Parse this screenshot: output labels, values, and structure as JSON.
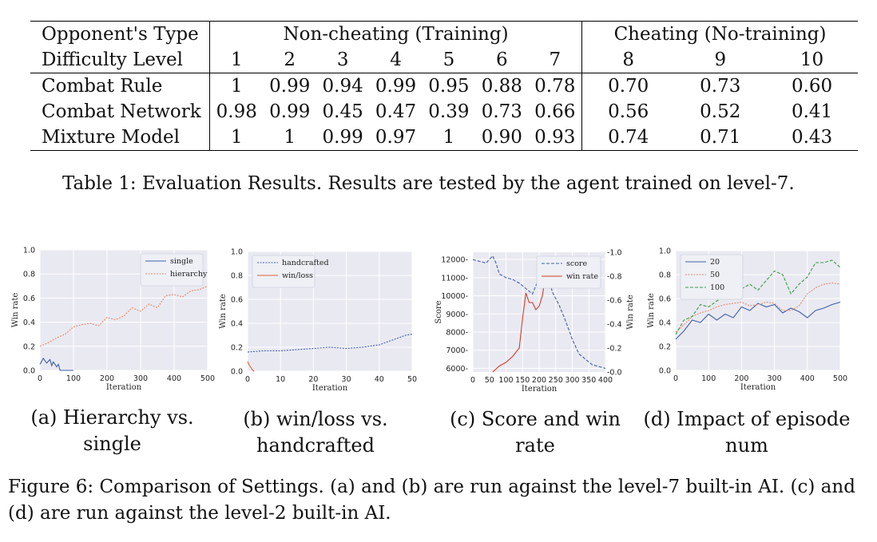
{
  "table": {
    "header1": {
      "label": "Opponent's Type",
      "group1": "Non-cheating (Training)",
      "group2": "Cheating (No-training)"
    },
    "header2": {
      "label": "Difficulty Level",
      "levels": [
        "1",
        "2",
        "3",
        "4",
        "5",
        "6",
        "7",
        "8",
        "9",
        "10"
      ]
    },
    "rows": [
      {
        "label": "Combat Rule",
        "values": [
          "1",
          "0.99",
          "0.94",
          "0.99",
          "0.95",
          "0.88",
          "0.78",
          "0.70",
          "0.73",
          "0.60"
        ]
      },
      {
        "label": "Combat Network",
        "values": [
          "0.98",
          "0.99",
          "0.45",
          "0.47",
          "0.39",
          "0.73",
          "0.66",
          "0.56",
          "0.52",
          "0.41"
        ]
      },
      {
        "label": "Mixture Model",
        "values": [
          "1",
          "1",
          "0.99",
          "0.97",
          "1",
          "0.90",
          "0.93",
          "0.74",
          "0.71",
          "0.43"
        ]
      }
    ],
    "caption": "Table 1: Evaluation Results. Results are tested by the agent trained on level-7."
  },
  "figure": {
    "caption": "Figure 6: Comparison of Settings. (a) and (b) are run against the level-7 built-in AI. (c) and (d) are run against the level-2 built-in AI.",
    "subcaptions": {
      "a": [
        "(a) Hierarchy vs.",
        "single"
      ],
      "b": [
        "(b) win/loss vs.",
        "handcrafted"
      ],
      "c": [
        "(c) Score and win",
        "rate"
      ],
      "d": [
        "(d) Impact of episode",
        "num"
      ]
    }
  },
  "chart_data": [
    {
      "id": "a",
      "type": "line",
      "xlabel": "Iteration",
      "ylabel": "Win rate",
      "xlim": [
        0,
        500
      ],
      "ylim": [
        0,
        1.0
      ],
      "xticks": [
        "0",
        "100",
        "200",
        "300",
        "400",
        "500"
      ],
      "yticks": [
        "0.0",
        "0.2",
        "0.4",
        "0.6",
        "0.8",
        "1.0"
      ],
      "legend_position": "top-right",
      "colors": {
        "single": "#3f5fa8",
        "hierarchy": "#e58a6d"
      },
      "series": [
        {
          "name": "single",
          "x": [
            0,
            10,
            20,
            30,
            35,
            40,
            50,
            55,
            60,
            70,
            80,
            90,
            100
          ],
          "y": [
            0.05,
            0.1,
            0.06,
            0.09,
            0.04,
            0.07,
            0.03,
            0.05,
            0.0,
            0.0,
            0.0,
            0.0,
            0.0
          ]
        },
        {
          "name": "hierarchy",
          "x": [
            0,
            25,
            50,
            75,
            100,
            125,
            150,
            175,
            200,
            225,
            250,
            275,
            300,
            325,
            350,
            375,
            400,
            425,
            450,
            475,
            500
          ],
          "y": [
            0.2,
            0.23,
            0.27,
            0.3,
            0.36,
            0.38,
            0.39,
            0.37,
            0.44,
            0.42,
            0.45,
            0.52,
            0.49,
            0.55,
            0.52,
            0.62,
            0.63,
            0.61,
            0.66,
            0.67,
            0.7
          ]
        }
      ]
    },
    {
      "id": "b",
      "type": "line",
      "xlabel": "Iteration",
      "ylabel": "Win rate",
      "xlim": [
        0,
        50
      ],
      "ylim": [
        0,
        1.0
      ],
      "xticks": [
        "0",
        "10",
        "20",
        "30",
        "40",
        "50"
      ],
      "yticks": [
        "0.0",
        "0.2",
        "0.4",
        "0.6",
        "0.8",
        "1.0"
      ],
      "legend_position": "top-left",
      "colors": {
        "handcrafted": "#3f5fa8",
        "win/loss": "#e0603c"
      },
      "series": [
        {
          "name": "handcrafted",
          "x": [
            0,
            5,
            10,
            15,
            20,
            25,
            30,
            35,
            40,
            45,
            48,
            50
          ],
          "y": [
            0.16,
            0.17,
            0.17,
            0.18,
            0.19,
            0.2,
            0.19,
            0.2,
            0.22,
            0.27,
            0.3,
            0.31
          ]
        },
        {
          "name": "win/loss",
          "x": [
            0,
            0.5,
            1,
            1.5,
            2
          ],
          "y": [
            0.08,
            0.05,
            0.03,
            0.01,
            0.0
          ]
        }
      ]
    },
    {
      "id": "c",
      "type": "line",
      "xlabel": "Iteration",
      "ylabel": "Score",
      "y2label": "Win rate",
      "xlim": [
        0,
        400
      ],
      "ylim": [
        5800,
        12400
      ],
      "y2lim": [
        0,
        1.0
      ],
      "xticks": [
        "0",
        "50",
        "100",
        "150",
        "200",
        "250",
        "300",
        "350",
        "400"
      ],
      "yticks": [
        "6000",
        "7000",
        "8000",
        "9000",
        "10000",
        "11000",
        "12000"
      ],
      "y2ticks": [
        "0.0",
        "0.2",
        "0.4",
        "0.6",
        "0.8",
        "1.0"
      ],
      "legend_position": "top-right",
      "colors": {
        "score": "#3f5fa8",
        "win rate": "#d33b2c"
      },
      "series": [
        {
          "name": "score",
          "x": [
            0,
            20,
            40,
            60,
            70,
            80,
            100,
            120,
            140,
            160,
            180,
            200,
            220,
            240,
            260,
            280,
            300,
            320,
            340,
            360,
            380,
            400
          ],
          "y": [
            12000,
            11900,
            11800,
            12200,
            11800,
            11200,
            11000,
            10900,
            10700,
            10400,
            10100,
            11000,
            11600,
            10200,
            9500,
            8600,
            7600,
            6800,
            6500,
            6200,
            6100,
            6000
          ]
        },
        {
          "name": "win rate",
          "axis": "y2",
          "x": [
            60,
            80,
            100,
            120,
            140,
            150,
            160,
            170,
            180,
            190,
            200,
            210,
            220,
            230,
            240
          ],
          "y": [
            0.0,
            0.05,
            0.08,
            0.13,
            0.2,
            0.45,
            0.66,
            0.58,
            0.58,
            0.52,
            0.55,
            0.64,
            0.82,
            0.9,
            0.88
          ]
        }
      ]
    },
    {
      "id": "d",
      "type": "line",
      "xlabel": "Iteration",
      "ylabel": "Win rate",
      "xlim": [
        0,
        500
      ],
      "ylim": [
        0,
        1.0
      ],
      "xticks": [
        "0",
        "100",
        "200",
        "300",
        "400",
        "500"
      ],
      "yticks": [
        "0.0",
        "0.2",
        "0.4",
        "0.6",
        "0.8",
        "1.0"
      ],
      "legend_position": "top-left",
      "colors": {
        "20": "#3f5fa8",
        "50": "#e58a6d",
        "100": "#3a9d48"
      },
      "series": [
        {
          "name": "20",
          "x": [
            0,
            25,
            50,
            75,
            100,
            125,
            150,
            175,
            200,
            225,
            250,
            275,
            300,
            325,
            350,
            375,
            400,
            425,
            450,
            475,
            500
          ],
          "y": [
            0.26,
            0.33,
            0.42,
            0.4,
            0.47,
            0.42,
            0.47,
            0.44,
            0.53,
            0.5,
            0.56,
            0.53,
            0.55,
            0.48,
            0.52,
            0.49,
            0.44,
            0.5,
            0.52,
            0.55,
            0.57
          ]
        },
        {
          "name": "50",
          "x": [
            0,
            25,
            50,
            75,
            100,
            125,
            150,
            175,
            200,
            225,
            250,
            275,
            300,
            325,
            350,
            375,
            400,
            425,
            450,
            475,
            500
          ],
          "y": [
            0.32,
            0.38,
            0.45,
            0.48,
            0.5,
            0.53,
            0.55,
            0.56,
            0.57,
            0.54,
            0.55,
            0.57,
            0.56,
            0.5,
            0.5,
            0.54,
            0.64,
            0.69,
            0.72,
            0.73,
            0.72
          ]
        },
        {
          "name": "100",
          "x": [
            0,
            25,
            50,
            75,
            100,
            125,
            150,
            175,
            200,
            225,
            250,
            275,
            300,
            325,
            350,
            375,
            400,
            425,
            450,
            475,
            500
          ],
          "y": [
            0.3,
            0.42,
            0.45,
            0.55,
            0.53,
            0.58,
            0.62,
            0.65,
            0.68,
            0.72,
            0.67,
            0.75,
            0.83,
            0.8,
            0.64,
            0.72,
            0.78,
            0.9,
            0.9,
            0.92,
            0.86
          ]
        }
      ]
    }
  ]
}
